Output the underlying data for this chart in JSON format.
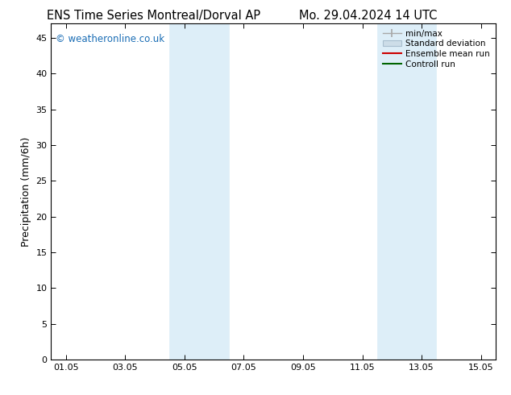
{
  "title_left": "ENS Time Series Montreal/Dorval AP",
  "title_right": "Mo. 29.04.2024 14 UTC",
  "ylabel": "Precipitation (mm/6h)",
  "ylim": [
    0,
    47
  ],
  "yticks": [
    0,
    5,
    10,
    15,
    20,
    25,
    30,
    35,
    40,
    45
  ],
  "xtick_labels": [
    "01.05",
    "03.05",
    "05.05",
    "07.05",
    "09.05",
    "11.05",
    "13.05",
    "15.05"
  ],
  "xtick_positions_days": [
    0,
    2,
    4,
    6,
    8,
    10,
    12,
    14
  ],
  "xlim": [
    -0.5,
    14.5
  ],
  "shaded_bands": [
    {
      "x_start_day": 3.5,
      "x_end_day": 5.5
    },
    {
      "x_start_day": 10.5,
      "x_end_day": 12.5
    }
  ],
  "shaded_color": "#ddeef8",
  "shaded_edge_color": "#c0d8ec",
  "watermark_text": "© weatheronline.co.uk",
  "watermark_color": "#1a6db5",
  "bg_color": "#ffffff",
  "legend_items": [
    {
      "label": "min/max",
      "color": "#a0a0a0",
      "style": "errorbar"
    },
    {
      "label": "Standard deviation",
      "color": "#c8d8e8",
      "style": "box"
    },
    {
      "label": "Ensemble mean run",
      "color": "#cc0000",
      "style": "line"
    },
    {
      "label": "Controll run",
      "color": "#006400",
      "style": "line"
    }
  ],
  "title_fontsize": 10.5,
  "axis_fontsize": 9,
  "tick_fontsize": 8,
  "legend_fontsize": 7.5,
  "watermark_fontsize": 8.5
}
